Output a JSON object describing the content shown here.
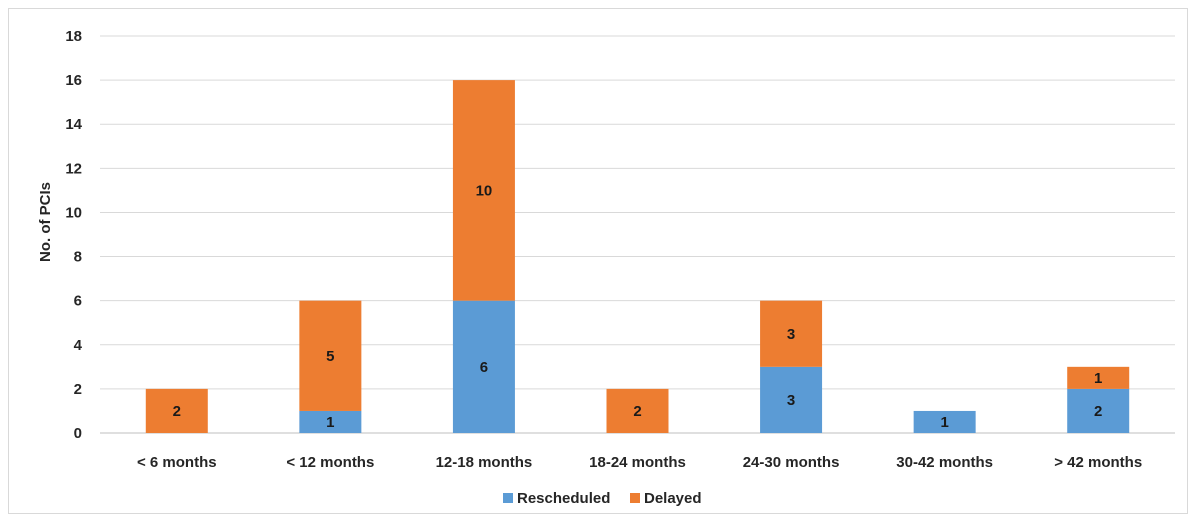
{
  "chart_data": {
    "type": "bar",
    "stacked": true,
    "categories": [
      "< 6 months",
      "< 12 months",
      "12-18 months",
      "18-24 months",
      "24-30 months",
      "30-42 months",
      "> 42 months"
    ],
    "series": [
      {
        "name": "Rescheduled",
        "values": [
          0,
          1,
          6,
          0,
          3,
          1,
          2
        ],
        "color": "#5b9bd5"
      },
      {
        "name": "Delayed",
        "values": [
          2,
          5,
          10,
          2,
          3,
          0,
          1
        ],
        "color": "#ed7d31"
      }
    ],
    "title": "",
    "xlabel": "",
    "ylabel": "No. of PCIs",
    "ylim": [
      0,
      18
    ],
    "yticks": [
      0,
      2,
      4,
      6,
      8,
      10,
      12,
      14,
      16,
      18
    ],
    "grid": true,
    "legend": "bottom-center",
    "data_labels": true
  }
}
